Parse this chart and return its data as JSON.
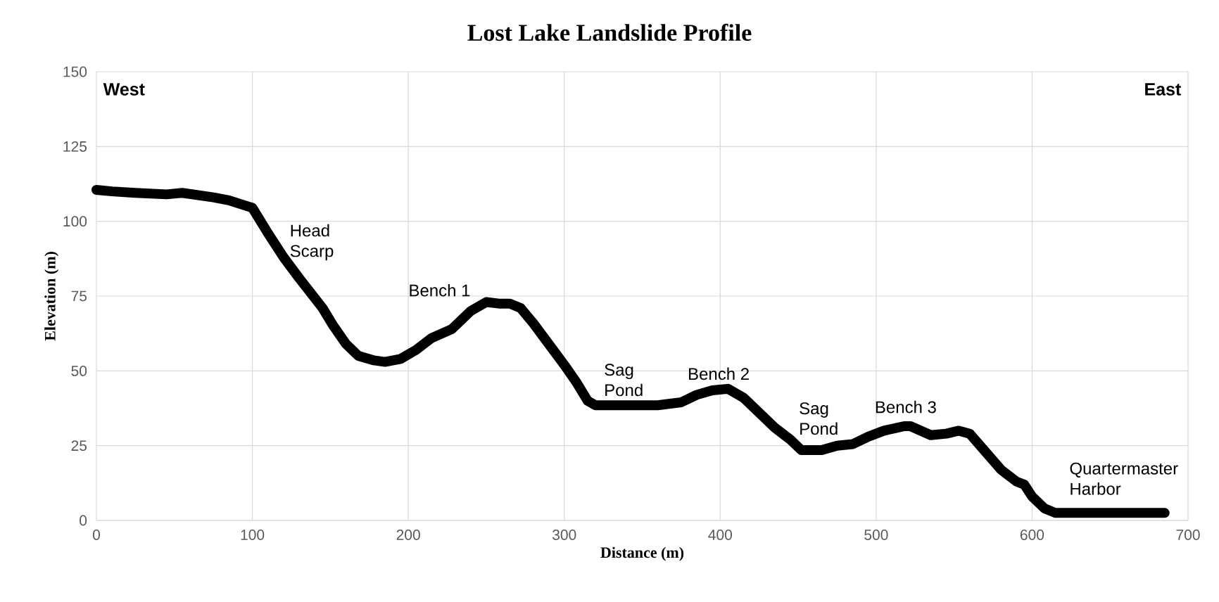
{
  "chart_data": {
    "type": "line",
    "title": "Lost Lake Landslide Profile",
    "xlabel": "Distance (m)",
    "ylabel": "Elevation (m)",
    "x": [
      0,
      10,
      25,
      45,
      55,
      75,
      85,
      97,
      100,
      110,
      120,
      130,
      145,
      152,
      160,
      168,
      178,
      185,
      195,
      205,
      215,
      228,
      240,
      250,
      258,
      265,
      272,
      280,
      290,
      300,
      308,
      315,
      320,
      340,
      360,
      375,
      385,
      395,
      405,
      415,
      425,
      435,
      445,
      452,
      465,
      475,
      485,
      495,
      505,
      518,
      522,
      535,
      545,
      553,
      560,
      570,
      580,
      590,
      595,
      600,
      608,
      615,
      650,
      685
    ],
    "values": [
      110.5,
      110,
      109.5,
      109,
      109.5,
      108,
      107,
      105,
      104.5,
      96,
      88,
      81,
      71,
      65,
      59,
      55,
      53.5,
      53,
      54,
      57,
      61,
      64,
      70,
      73,
      72.5,
      72.5,
      71,
      66,
      59,
      52,
      46,
      40,
      38.5,
      38.5,
      38.5,
      39.5,
      42,
      43.5,
      44,
      41,
      36,
      31,
      27,
      23.5,
      23.5,
      25,
      25.5,
      28,
      30,
      31.5,
      31.5,
      28.5,
      29,
      30,
      29,
      23,
      17,
      13,
      12,
      8,
      4,
      2.5,
      2.5,
      2.5
    ],
    "color": "#000000",
    "xlim": [
      0,
      700
    ],
    "ylim": [
      0,
      150
    ],
    "xticks": [
      0,
      100,
      200,
      300,
      400,
      500,
      600,
      700
    ],
    "yticks": [
      0,
      25,
      50,
      75,
      100,
      125,
      150
    ],
    "grid": true,
    "annotations": [
      "West",
      "East",
      "Head Scarp",
      "Bench 1",
      "Sag Pond",
      "Bench 2",
      "Sag Pond",
      "Bench 3",
      "Quartermaster Harbor"
    ]
  }
}
